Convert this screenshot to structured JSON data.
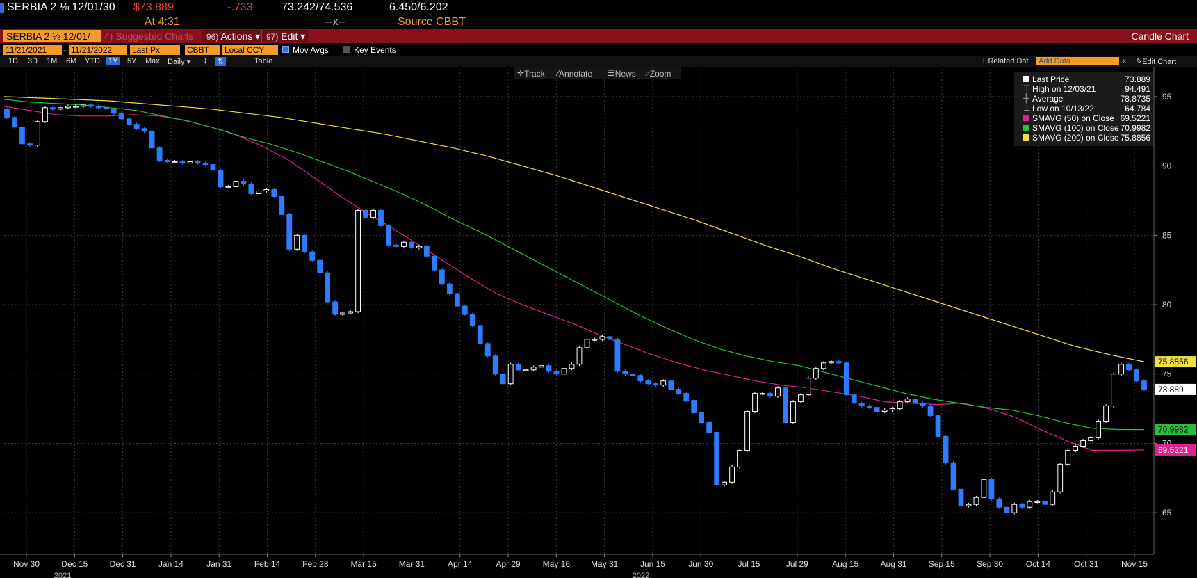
{
  "header": {
    "ticker": "SERBIA 2 ⅛ 12/01/30",
    "price": "$73.889",
    "change": "-.733",
    "bid_ask": "73.242/74.536",
    "yields": "6.450/6.202",
    "time": "At 4:31",
    "size": "--x--",
    "source": "Source CBBT"
  },
  "toolbar": {
    "ticker_box": "SERBIA 2 ⅛ 12/01/",
    "suggested": "4) Suggested Charts",
    "actions_num": "96)",
    "actions_label": "Actions ▾",
    "edit_num": "97)",
    "edit_label": "Edit ▾",
    "chart_name": "Candle Chart"
  },
  "controls": {
    "start_date": "11/21/2021",
    "end_date": "11/21/2022",
    "field": "Last Px",
    "source": "CBBT",
    "currency": "Local CCY",
    "mov_avgs": "Mov Avgs",
    "key_events": "Key Events"
  },
  "periods": {
    "items": [
      "1D",
      "3D",
      "1M",
      "6M",
      "YTD",
      "1Y",
      "5Y",
      "Max"
    ],
    "selected": "1Y",
    "frequency": "Daily ▾",
    "table": "Table",
    "related": "+ Related Dat",
    "add_data_placeholder": "Add Data",
    "edit_chart": "Edit Chart"
  },
  "chart_tools": [
    "Track",
    "Annotate",
    "News",
    "Zoom"
  ],
  "legend": {
    "rows": [
      {
        "label": "Last Price",
        "value": "73.889",
        "color": "#ffffff"
      },
      {
        "label": "High on 12/03/21",
        "value": "94.491",
        "color": ""
      },
      {
        "label": "Average",
        "value": "78.8735",
        "color": ""
      },
      {
        "label": "Low on 10/13/22",
        "value": "64.784",
        "color": ""
      },
      {
        "label": "SMAVG (50)  on Close",
        "value": "69.5221",
        "color": "#e0208c"
      },
      {
        "label": "SMAVG (100)  on Close",
        "value": "70.9982",
        "color": "#22c03c"
      },
      {
        "label": "SMAVG (200)  on Close",
        "value": "75.8856",
        "color": "#f0e040"
      }
    ]
  },
  "chart_data": {
    "type": "candlestick",
    "ylim": [
      62,
      97
    ],
    "y_ticks": [
      65,
      70,
      75,
      80,
      85,
      90,
      95
    ],
    "x_ticks": [
      "Nov 30",
      "Dec 15",
      "Dec 31",
      "Jan 14",
      "Jan 31",
      "Feb 14",
      "Feb 28",
      "Mar 15",
      "Mar 31",
      "Apr 14",
      "Apr 29",
      "May 16",
      "May 31",
      "Jun 15",
      "Jun 30",
      "Jul 15",
      "Jul 29",
      "Aug 15",
      "Aug 31",
      "Sep 15",
      "Sep 30",
      "Oct 14",
      "Oct 31",
      "Nov 15"
    ],
    "year_labels": [
      "2021",
      "2022"
    ],
    "last_price": 73.889,
    "price_path": [
      93.5,
      92.8,
      91.6,
      91.5,
      93.2,
      94.2,
      94.1,
      94.2,
      94.3,
      94.3,
      94.4,
      94.3,
      94.2,
      94.1,
      93.8,
      93.4,
      93.0,
      92.7,
      92.5,
      91.3,
      90.4,
      90.3,
      90.3,
      90.2,
      90.3,
      90.2,
      90.1,
      89.7,
      88.5,
      88.5,
      88.9,
      88.7,
      88.0,
      88.2,
      88.3,
      87.8,
      86.5,
      84.0,
      85.0,
      83.8,
      83.2,
      82.3,
      80.2,
      79.3,
      79.4,
      79.5,
      86.8,
      86.3,
      86.8,
      85.7,
      84.3,
      84.2,
      84.5,
      84.1,
      84.2,
      83.5,
      82.5,
      81.5,
      80.8,
      79.9,
      79.3,
      78.5,
      77.2,
      76.3,
      75.0,
      74.3,
      75.7,
      75.3,
      75.3,
      75.5,
      75.6,
      75.2,
      75.0,
      75.4,
      75.7,
      76.9,
      77.5,
      77.5,
      77.7,
      77.5,
      75.2,
      75.0,
      74.9,
      74.5,
      74.3,
      74.2,
      74.5,
      73.9,
      73.6,
      73.1,
      72.2,
      71.5,
      70.8,
      67.0,
      67.2,
      68.3,
      69.5,
      72.3,
      73.6,
      73.6,
      73.4,
      74.0,
      71.5,
      73.0,
      73.5,
      74.7,
      75.4,
      75.8,
      75.9,
      75.8,
      73.5,
      72.9,
      72.7,
      72.6,
      72.3,
      72.4,
      72.5,
      73.0,
      73.2,
      72.9,
      72.7,
      72.0,
      70.5,
      68.6,
      66.7,
      65.5,
      65.6,
      66.1,
      67.4,
      66.0,
      65.4,
      65.0,
      65.6,
      65.4,
      65.8,
      65.8,
      65.6,
      66.5,
      68.5,
      69.5,
      69.8,
      70.2,
      70.4,
      71.6,
      72.7,
      75.0,
      75.7,
      75.3,
      74.5,
      73.889
    ],
    "series": [
      {
        "name": "SMAVG (50)",
        "color": "#e0208c",
        "values": [
          94.3,
          94.0,
          93.7,
          93.6,
          93.6,
          93.7,
          93.6,
          93.3,
          92.8,
          92.2,
          91.4,
          90.4,
          89.1,
          87.8,
          86.6,
          85.5,
          84.3,
          83.1,
          81.9,
          80.8,
          80.0,
          79.3,
          78.6,
          77.8,
          77.1,
          76.4,
          75.8,
          75.3,
          74.9,
          74.5,
          74.2,
          74.0,
          73.7,
          73.4,
          73.0,
          72.9,
          72.8,
          72.9,
          72.5,
          71.9,
          71.0,
          70.2,
          69.5,
          69.5,
          69.5221
        ]
      },
      {
        "name": "SMAVG (100)",
        "color": "#22c03c",
        "values": [
          94.8,
          94.6,
          94.5,
          94.4,
          94.2,
          94.0,
          93.6,
          93.2,
          92.7,
          92.1,
          91.6,
          91.0,
          90.3,
          89.6,
          88.8,
          88.0,
          87.1,
          86.1,
          85.2,
          84.2,
          83.2,
          82.2,
          81.2,
          80.2,
          79.2,
          78.3,
          77.5,
          76.8,
          76.3,
          75.9,
          75.6,
          75.1,
          74.6,
          74.1,
          73.6,
          73.2,
          72.9,
          72.6,
          72.4,
          72.0,
          71.5,
          71.1,
          71.0,
          70.9982
        ]
      },
      {
        "name": "SMAVG (200)",
        "color": "#f0e040",
        "values": [
          95.0,
          94.9,
          94.8,
          94.7,
          94.5,
          94.3,
          94.1,
          93.8,
          93.5,
          93.1,
          92.7,
          92.3,
          91.8,
          91.3,
          90.7,
          90.0,
          89.3,
          88.5,
          87.7,
          86.9,
          86.1,
          85.2,
          84.3,
          83.5,
          82.6,
          81.8,
          81.0,
          80.2,
          79.4,
          78.6,
          77.8,
          77.0,
          76.4,
          75.8856
        ]
      }
    ]
  },
  "axis_tags": {
    "sma200": "75.8856",
    "last": "73.889",
    "sma100": "70.9982",
    "sma50": "69.5221"
  }
}
